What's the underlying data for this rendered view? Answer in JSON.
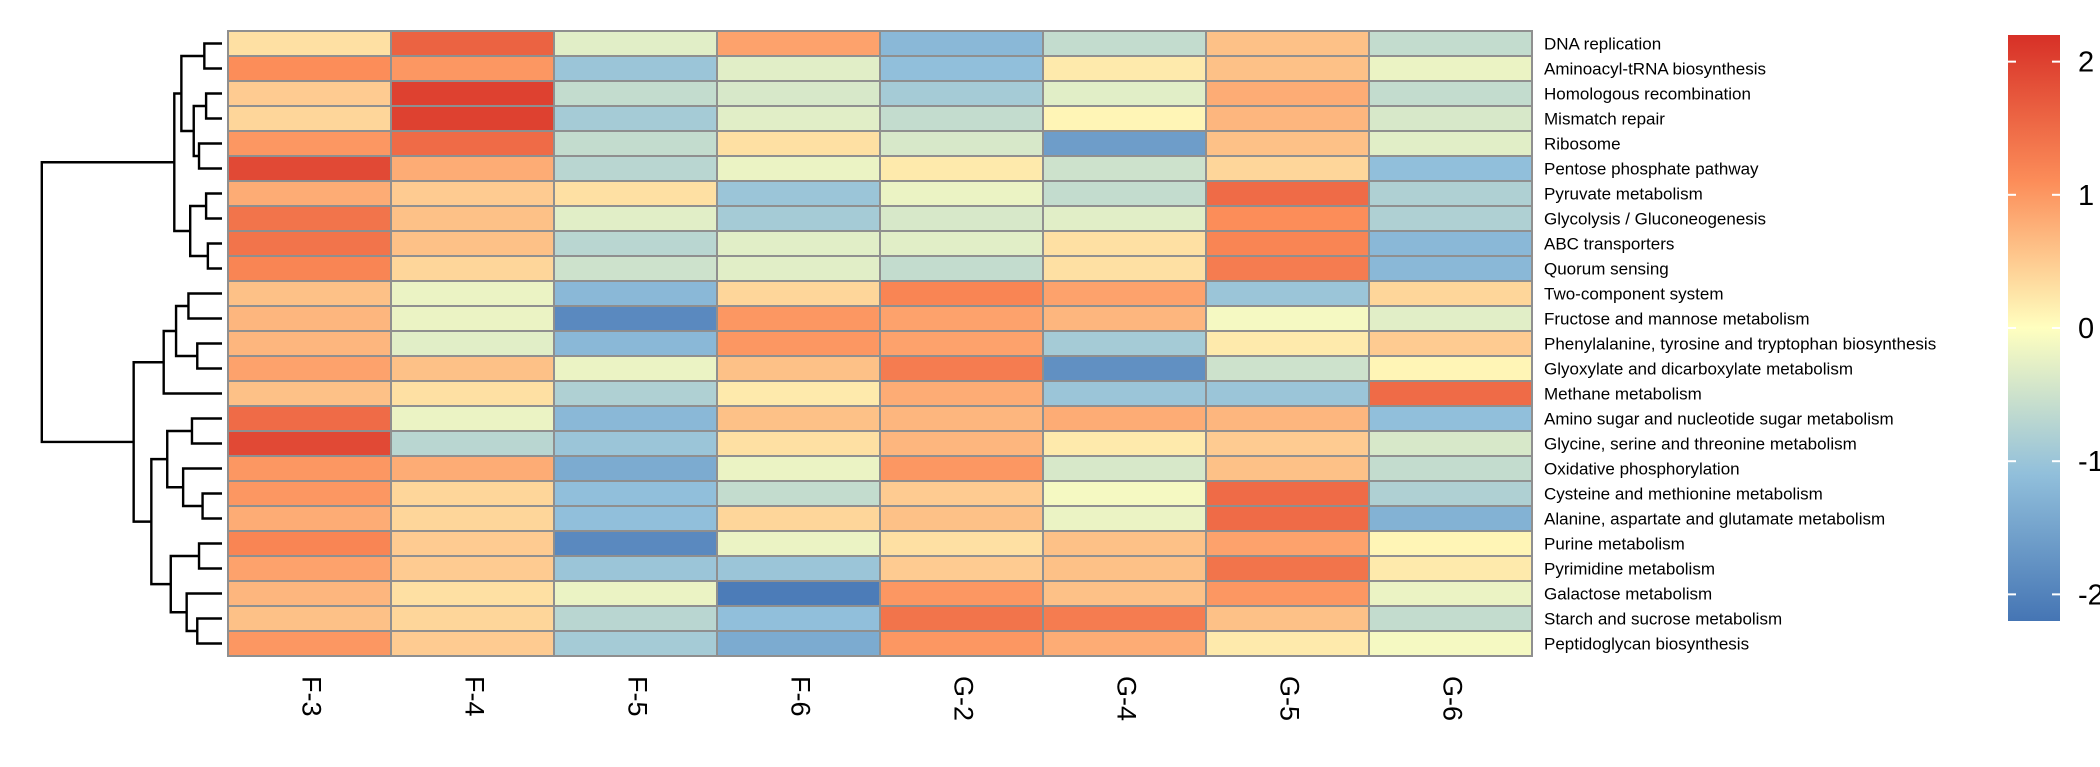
{
  "chart_data": {
    "type": "heatmap",
    "title": "",
    "columns": [
      "F-3",
      "F-4",
      "F-5",
      "F-6",
      "G-2",
      "G-4",
      "G-5",
      "G-6"
    ],
    "rows": [
      "DNA replication",
      "Aminoacyl-tRNA biosynthesis",
      "Homologous recombination",
      "Mismatch repair",
      "Ribosome",
      "Pentose phosphate pathway",
      "Pyruvate metabolism",
      "Glycolysis / Gluconeogenesis",
      "ABC transporters",
      "Quorum sensing",
      "Two-component system",
      "Fructose and mannose metabolism",
      "Phenylalanine, tyrosine and tryptophan biosynthesis",
      "Glyoxylate and dicarboxylate metabolism",
      "Methane metabolism",
      "Amino sugar and nucleotide sugar metabolism",
      "Glycine, serine and threonine metabolism",
      "Oxidative phosphorylation",
      "Cysteine and methionine metabolism",
      "Alanine, aspartate and glutamate metabolism",
      "Purine metabolism",
      "Pyrimidine metabolism",
      "Galactose metabolism",
      "Starch and sucrose metabolism",
      "Peptidoglycan biosynthesis"
    ],
    "values": [
      [
        0.3,
        1.6,
        -0.3,
        0.9,
        -1.2,
        -0.6,
        0.6,
        -0.6
      ],
      [
        1.1,
        1.0,
        -1.0,
        -0.3,
        -1.1,
        0.2,
        0.6,
        -0.2
      ],
      [
        0.5,
        2.0,
        -0.6,
        -0.4,
        -0.9,
        -0.3,
        0.8,
        -0.6
      ],
      [
        0.4,
        2.0,
        -0.9,
        -0.3,
        -0.6,
        0.1,
        0.7,
        -0.4
      ],
      [
        1.0,
        1.5,
        -0.6,
        0.3,
        -0.4,
        -1.6,
        0.6,
        -0.3
      ],
      [
        1.9,
        0.8,
        -0.7,
        -0.2,
        0.2,
        -0.5,
        0.4,
        -1.1
      ],
      [
        0.8,
        0.5,
        0.3,
        -1.0,
        -0.2,
        -0.6,
        1.5,
        -0.8
      ],
      [
        1.4,
        0.6,
        -0.3,
        -0.9,
        -0.4,
        -0.3,
        1.1,
        -0.8
      ],
      [
        1.4,
        0.6,
        -0.7,
        -0.3,
        -0.3,
        0.3,
        1.2,
        -1.2
      ],
      [
        1.2,
        0.4,
        -0.5,
        -0.3,
        -0.6,
        0.3,
        1.3,
        -1.2
      ],
      [
        0.6,
        -0.2,
        -1.2,
        0.4,
        1.2,
        0.9,
        -1.0,
        0.4
      ],
      [
        0.7,
        -0.2,
        -1.9,
        1.0,
        0.9,
        0.7,
        -0.1,
        -0.3
      ],
      [
        0.7,
        -0.3,
        -1.2,
        1.0,
        0.9,
        -0.9,
        0.2,
        0.5
      ],
      [
        0.9,
        0.6,
        -0.2,
        0.6,
        1.3,
        -1.8,
        -0.5,
        0.1
      ],
      [
        0.6,
        0.3,
        -0.8,
        0.2,
        0.8,
        -1.0,
        -1.0,
        1.5
      ],
      [
        1.5,
        -0.2,
        -1.2,
        0.6,
        0.7,
        0.8,
        0.7,
        -1.1
      ],
      [
        1.9,
        -0.7,
        -1.0,
        0.3,
        0.7,
        0.2,
        0.5,
        -0.4
      ],
      [
        1.0,
        0.8,
        -1.4,
        -0.2,
        1.0,
        -0.4,
        0.6,
        -0.6
      ],
      [
        1.0,
        0.4,
        -1.1,
        -0.6,
        0.5,
        -0.1,
        1.5,
        -0.8
      ],
      [
        0.8,
        0.4,
        -1.1,
        0.4,
        0.6,
        -0.2,
        1.5,
        -1.3
      ],
      [
        1.2,
        0.5,
        -1.9,
        -0.2,
        0.3,
        0.6,
        0.9,
        0.1
      ],
      [
        0.9,
        0.5,
        -1.0,
        -1.0,
        0.5,
        0.6,
        1.4,
        0.2
      ],
      [
        0.7,
        0.3,
        -0.2,
        -2.1,
        1.0,
        0.6,
        1.0,
        -0.2
      ],
      [
        0.6,
        0.4,
        -0.7,
        -1.1,
        1.4,
        1.3,
        0.6,
        -0.6
      ],
      [
        1.0,
        0.5,
        -0.9,
        -1.4,
        1.0,
        0.8,
        0.2,
        -0.1
      ]
    ],
    "color_scale": {
      "min": -2.2,
      "max": 2.2,
      "low_color": "#4575b4",
      "mid_color": "#ffffbf",
      "high_color": "#d73027",
      "ticks": [
        2,
        1,
        0,
        -1,
        -2
      ],
      "tick_labels": [
        "2",
        "1",
        "0",
        "-1",
        "-2"
      ]
    },
    "row_dendrogram": {
      "merges": [
        [
          0,
          1,
          1
        ],
        [
          2,
          3,
          1
        ],
        [
          4,
          5,
          1
        ],
        [
          5,
          6,
          2
        ],
        [
          7,
          8,
          1
        ],
        [
          8,
          9,
          2
        ],
        [
          7,
          9,
          3
        ],
        [
          3,
          10,
          4
        ],
        [
          1,
          11,
          5
        ],
        [
          12,
          13,
          1
        ],
        [
          14,
          15,
          1
        ],
        [
          15,
          16,
          2
        ],
        [
          11,
          17,
          3
        ],
        [
          16,
          17,
          1
        ],
        [
          17,
          18,
          2
        ],
        [
          20,
          21,
          1
        ],
        [
          18,
          22,
          3
        ],
        [
          19,
          23,
          1
        ],
        [
          20,
          24,
          2
        ],
        [
          22,
          25,
          3
        ],
        [
          21,
          26,
          4
        ],
        [
          24,
          27,
          1
        ],
        [
          23,
          28,
          2
        ],
        [
          26,
          29,
          4
        ],
        [
          30,
          31,
          4
        ],
        [
          32,
          33,
          1
        ],
        [
          33,
          34,
          2
        ],
        [
          34,
          35,
          3
        ],
        [
          35,
          36,
          3
        ],
        [
          36,
          37,
          5
        ],
        [
          38,
          39,
          1
        ],
        [
          39,
          40,
          2
        ],
        [
          40,
          41,
          3
        ],
        [
          42,
          43,
          1
        ],
        [
          43,
          44,
          2
        ],
        [
          44,
          45,
          2
        ],
        [
          45,
          46,
          3
        ],
        [
          46,
          47,
          4
        ],
        [
          47,
          48,
          5
        ]
      ]
    }
  }
}
